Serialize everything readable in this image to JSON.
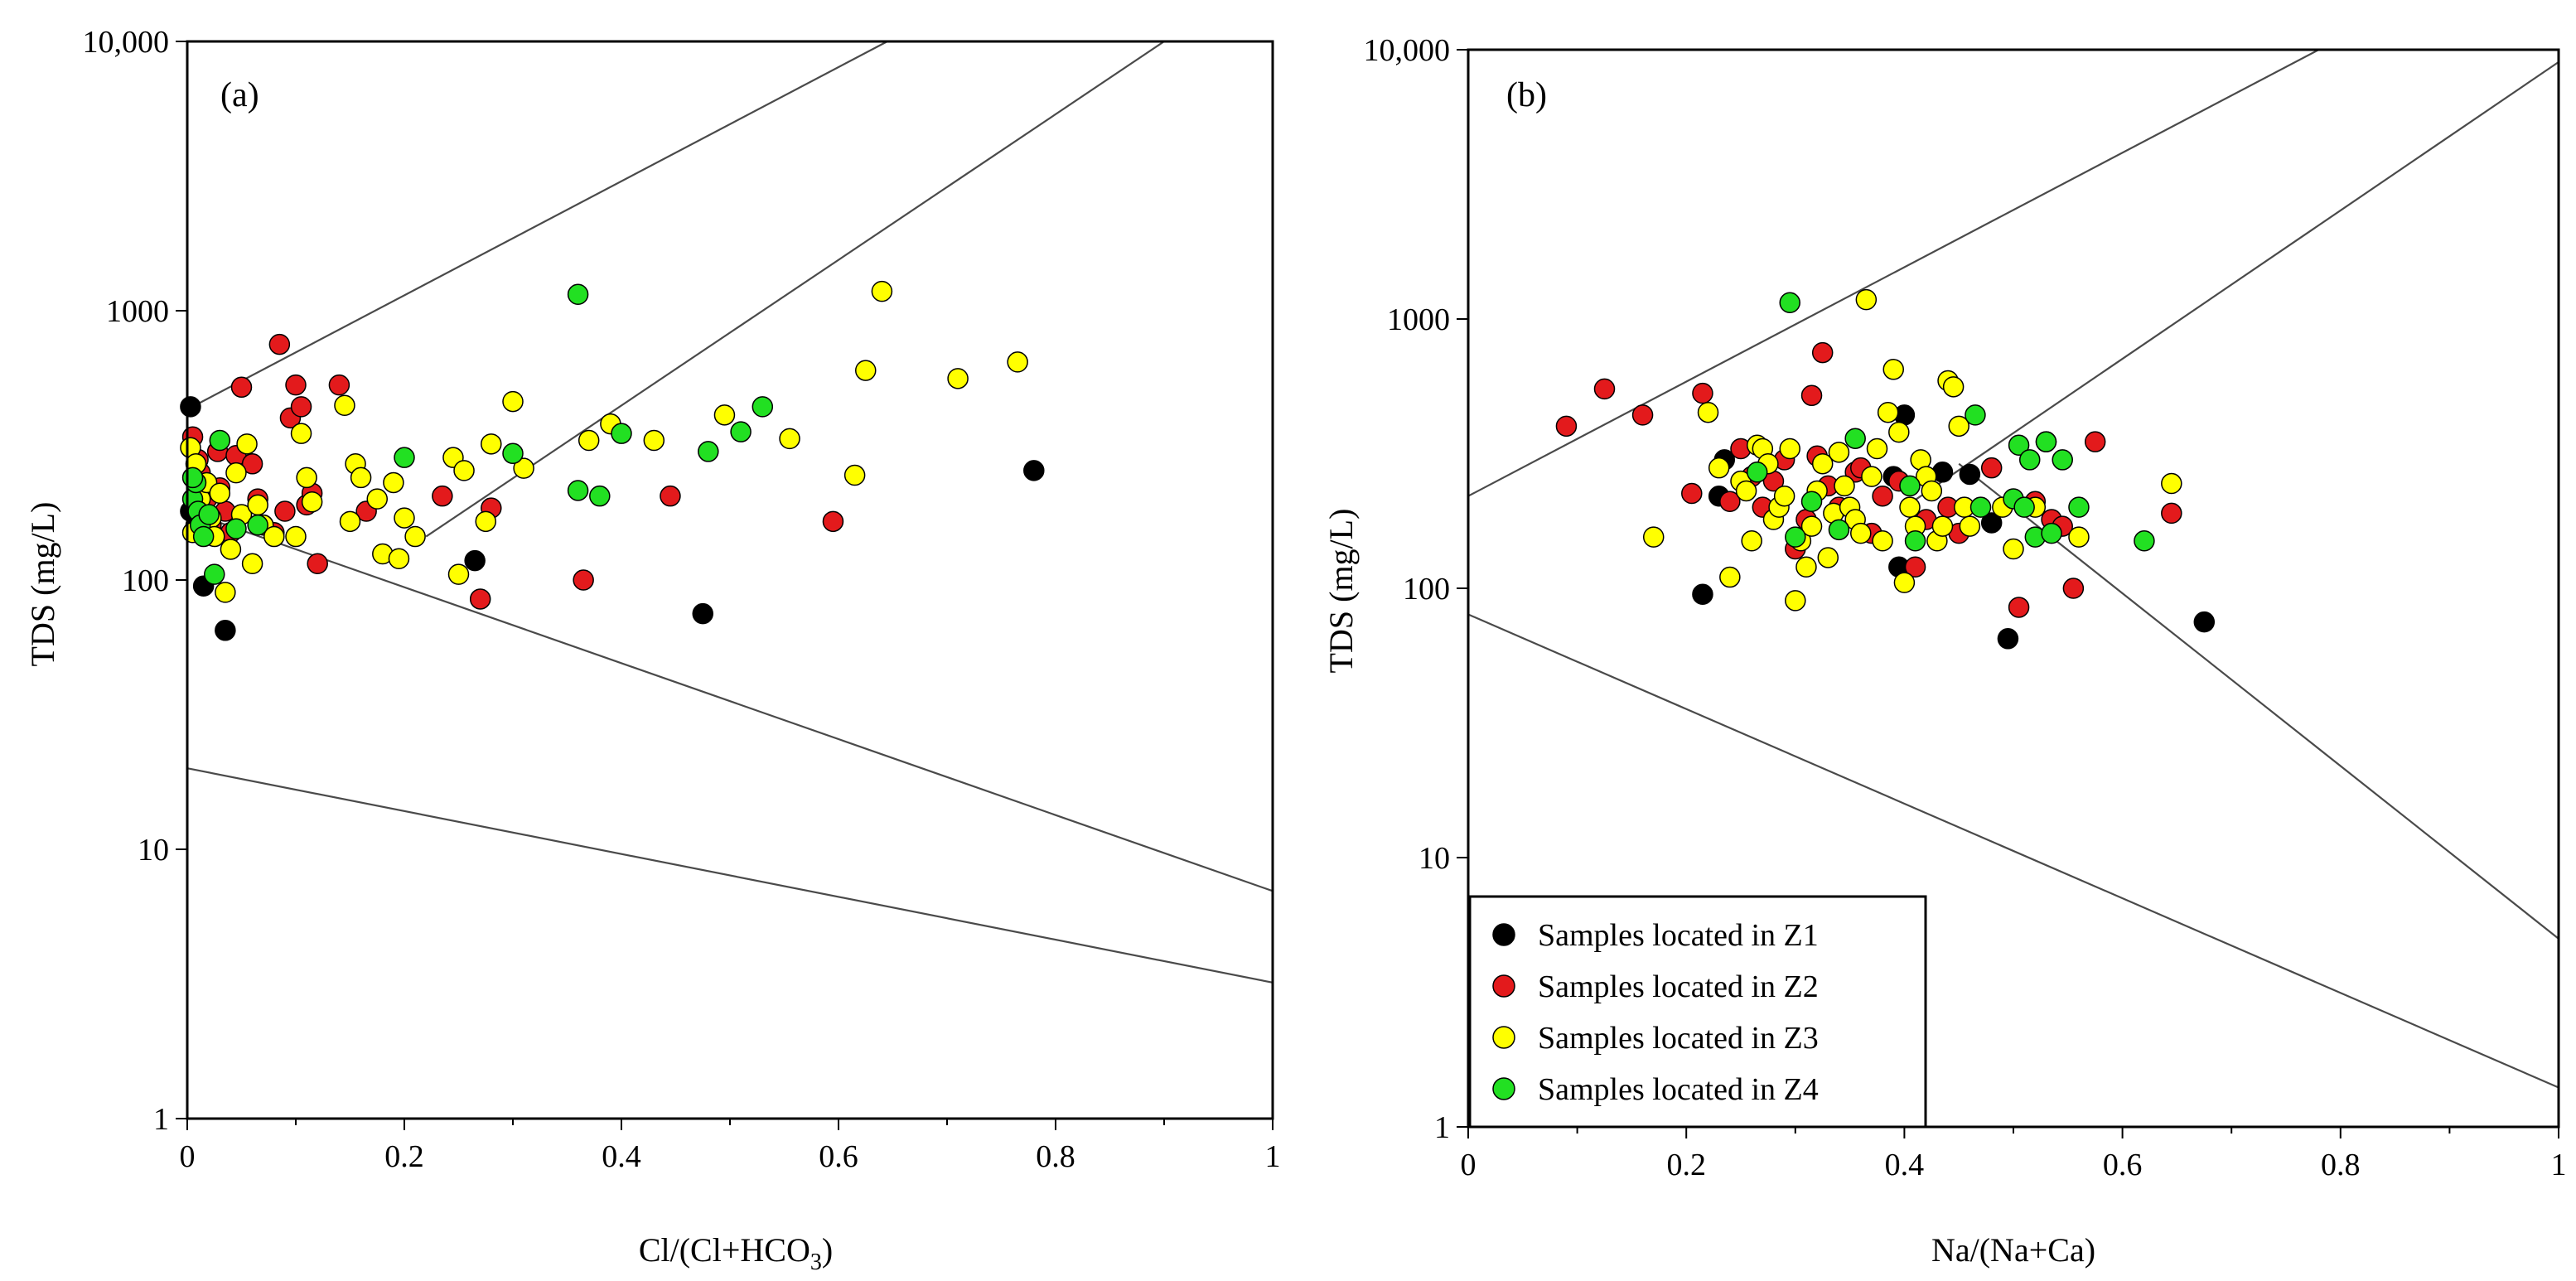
{
  "colors": {
    "Z1": "#000000",
    "Z2": "#e31a1c",
    "Z3": "#ffff00",
    "Z4": "#22e022"
  },
  "chart_data": [
    {
      "type": "scatter",
      "panel_label": "(a)",
      "title": "",
      "xlabel": "Cl/(Cl+HCO",
      "xlabel_sub": "3",
      "xlabel_end": ")",
      "ylabel": "TDS (mg/L)",
      "xlim": [
        0,
        1
      ],
      "ylim": [
        1,
        10000
      ],
      "yscale": "log",
      "x_ticks": [
        "0",
        "0.2",
        "0.4",
        "0.6",
        "0.8",
        "1"
      ],
      "y_ticks": [
        "1",
        "10",
        "100",
        "1000",
        "10,000"
      ],
      "boundary_lines": [
        {
          "x": [
            0,
            0.645
          ],
          "y": [
            430,
            10000
          ]
        },
        {
          "x": [
            0.22,
            0.9
          ],
          "y": [
            145,
            10000
          ]
        },
        {
          "x": [
            0,
            1
          ],
          "y": [
            180,
            7
          ]
        },
        {
          "x": [
            0,
            1
          ],
          "y": [
            20,
            3.2
          ]
        }
      ],
      "series": [
        {
          "name": "Samples located in Z1",
          "color_key": "Z1",
          "points": [
            [
              0.003,
              440
            ],
            [
              0.003,
              180
            ],
            [
              0.015,
              95
            ],
            [
              0.035,
              65
            ],
            [
              0.265,
              118
            ],
            [
              0.475,
              75
            ],
            [
              0.78,
              255
            ],
            [
              0.008,
              160
            ]
          ]
        },
        {
          "name": "Samples located in Z2",
          "color_key": "Z2",
          "points": [
            [
              0.005,
              340
            ],
            [
              0.01,
              280
            ],
            [
              0.012,
              250
            ],
            [
              0.018,
              200
            ],
            [
              0.022,
              160
            ],
            [
              0.028,
              300
            ],
            [
              0.03,
              220
            ],
            [
              0.035,
              180
            ],
            [
              0.04,
              150
            ],
            [
              0.045,
              290
            ],
            [
              0.05,
              520
            ],
            [
              0.06,
              270
            ],
            [
              0.065,
              200
            ],
            [
              0.07,
              160
            ],
            [
              0.08,
              150
            ],
            [
              0.085,
              750
            ],
            [
              0.09,
              180
            ],
            [
              0.095,
              400
            ],
            [
              0.1,
              530
            ],
            [
              0.105,
              440
            ],
            [
              0.11,
              190
            ],
            [
              0.115,
              210
            ],
            [
              0.12,
              115
            ],
            [
              0.14,
              530
            ],
            [
              0.165,
              180
            ],
            [
              0.235,
              205
            ],
            [
              0.27,
              85
            ],
            [
              0.28,
              185
            ],
            [
              0.365,
              100
            ],
            [
              0.445,
              205
            ],
            [
              0.595,
              165
            ]
          ]
        },
        {
          "name": "Samples located in Z3",
          "color_key": "Z3",
          "points": [
            [
              0.003,
              310
            ],
            [
              0.005,
              150
            ],
            [
              0.008,
              270
            ],
            [
              0.012,
              200
            ],
            [
              0.018,
              230
            ],
            [
              0.022,
              170
            ],
            [
              0.025,
              145
            ],
            [
              0.03,
              210
            ],
            [
              0.035,
              90
            ],
            [
              0.04,
              130
            ],
            [
              0.045,
              250
            ],
            [
              0.05,
              175
            ],
            [
              0.055,
              320
            ],
            [
              0.06,
              115
            ],
            [
              0.065,
              190
            ],
            [
              0.07,
              160
            ],
            [
              0.08,
              145
            ],
            [
              0.1,
              145
            ],
            [
              0.105,
              350
            ],
            [
              0.11,
              240
            ],
            [
              0.115,
              195
            ],
            [
              0.145,
              445
            ],
            [
              0.15,
              165
            ],
            [
              0.155,
              270
            ],
            [
              0.16,
              240
            ],
            [
              0.175,
              200
            ],
            [
              0.18,
              125
            ],
            [
              0.19,
              230
            ],
            [
              0.195,
              120
            ],
            [
              0.2,
              170
            ],
            [
              0.21,
              145
            ],
            [
              0.245,
              285
            ],
            [
              0.25,
              105
            ],
            [
              0.255,
              255
            ],
            [
              0.275,
              165
            ],
            [
              0.28,
              320
            ],
            [
              0.3,
              460
            ],
            [
              0.31,
              260
            ],
            [
              0.37,
              330
            ],
            [
              0.39,
              380
            ],
            [
              0.43,
              330
            ],
            [
              0.495,
              410
            ],
            [
              0.555,
              335
            ],
            [
              0.615,
              245
            ],
            [
              0.625,
              600
            ],
            [
              0.64,
              1180
            ],
            [
              0.71,
              560
            ],
            [
              0.765,
              645
            ]
          ]
        },
        {
          "name": "Samples located in Z4",
          "color_key": "Z4",
          "points": [
            [
              0.005,
              200
            ],
            [
              0.008,
              230
            ],
            [
              0.01,
              180
            ],
            [
              0.012,
              160
            ],
            [
              0.015,
              145
            ],
            [
              0.02,
              175
            ],
            [
              0.025,
              105
            ],
            [
              0.03,
              330
            ],
            [
              0.045,
              155
            ],
            [
              0.065,
              160
            ],
            [
              0.2,
              285
            ],
            [
              0.3,
              295
            ],
            [
              0.36,
              1150
            ],
            [
              0.36,
              215
            ],
            [
              0.38,
              205
            ],
            [
              0.4,
              350
            ],
            [
              0.48,
              300
            ],
            [
              0.51,
              355
            ],
            [
              0.53,
              440
            ],
            [
              0.005,
              240
            ]
          ]
        }
      ]
    },
    {
      "type": "scatter",
      "panel_label": "(b)",
      "title": "",
      "xlabel": "Na/(Na+Ca)",
      "ylabel": "TDS (mg/L)",
      "xlim": [
        0,
        1
      ],
      "ylim": [
        1,
        10000
      ],
      "yscale": "log",
      "x_ticks": [
        "0",
        "0.2",
        "0.4",
        "0.6",
        "0.8",
        "1"
      ],
      "y_ticks": [
        "1",
        "10",
        "100",
        "1000",
        "10,000"
      ],
      "boundary_lines": [
        {
          "x": [
            0,
            0.78
          ],
          "y": [
            220,
            10000
          ]
        },
        {
          "x": [
            0.4,
            1
          ],
          "y": [
            200,
            9000
          ]
        },
        {
          "x": [
            0.45,
            1
          ],
          "y": [
            290,
            5
          ]
        },
        {
          "x": [
            0,
            1
          ],
          "y": [
            80,
            1.4
          ]
        }
      ],
      "series": [
        {
          "name": "Samples located in Z1",
          "color_key": "Z1",
          "points": [
            [
              0.215,
              95
            ],
            [
              0.23,
              220
            ],
            [
              0.235,
              300
            ],
            [
              0.39,
              260
            ],
            [
              0.395,
              120
            ],
            [
              0.4,
              440
            ],
            [
              0.435,
              270
            ],
            [
              0.46,
              265
            ],
            [
              0.48,
              175
            ],
            [
              0.495,
              65
            ],
            [
              0.675,
              75
            ]
          ]
        },
        {
          "name": "Samples located in Z2",
          "color_key": "Z2",
          "points": [
            [
              0.09,
              400
            ],
            [
              0.125,
              550
            ],
            [
              0.16,
              440
            ],
            [
              0.205,
              225
            ],
            [
              0.215,
              530
            ],
            [
              0.24,
              210
            ],
            [
              0.25,
              330
            ],
            [
              0.26,
              260
            ],
            [
              0.27,
              200
            ],
            [
              0.28,
              250
            ],
            [
              0.29,
              300
            ],
            [
              0.3,
              140
            ],
            [
              0.31,
              180
            ],
            [
              0.315,
              520
            ],
            [
              0.32,
              310
            ],
            [
              0.325,
              750
            ],
            [
              0.33,
              240
            ],
            [
              0.34,
              200
            ],
            [
              0.355,
              270
            ],
            [
              0.36,
              280
            ],
            [
              0.37,
              160
            ],
            [
              0.38,
              220
            ],
            [
              0.395,
              250
            ],
            [
              0.41,
              120
            ],
            [
              0.42,
              180
            ],
            [
              0.44,
              200
            ],
            [
              0.45,
              160
            ],
            [
              0.48,
              280
            ],
            [
              0.505,
              85
            ],
            [
              0.52,
              210
            ],
            [
              0.53,
              350
            ],
            [
              0.535,
              180
            ],
            [
              0.545,
              170
            ],
            [
              0.555,
              100
            ],
            [
              0.575,
              350
            ],
            [
              0.645,
              190
            ]
          ]
        },
        {
          "name": "Samples located in Z3",
          "color_key": "Z3",
          "points": [
            [
              0.17,
              155
            ],
            [
              0.22,
              450
            ],
            [
              0.23,
              280
            ],
            [
              0.24,
              110
            ],
            [
              0.25,
              250
            ],
            [
              0.255,
              230
            ],
            [
              0.26,
              150
            ],
            [
              0.265,
              340
            ],
            [
              0.27,
              330
            ],
            [
              0.275,
              290
            ],
            [
              0.28,
              180
            ],
            [
              0.285,
              200
            ],
            [
              0.29,
              220
            ],
            [
              0.295,
              330
            ],
            [
              0.3,
              90
            ],
            [
              0.305,
              150
            ],
            [
              0.31,
              120
            ],
            [
              0.315,
              170
            ],
            [
              0.32,
              230
            ],
            [
              0.325,
              290
            ],
            [
              0.33,
              130
            ],
            [
              0.335,
              190
            ],
            [
              0.34,
              320
            ],
            [
              0.345,
              240
            ],
            [
              0.35,
              200
            ],
            [
              0.355,
              180
            ],
            [
              0.36,
              160
            ],
            [
              0.365,
              1180
            ],
            [
              0.37,
              260
            ],
            [
              0.375,
              330
            ],
            [
              0.38,
              150
            ],
            [
              0.385,
              450
            ],
            [
              0.39,
              650
            ],
            [
              0.395,
              380
            ],
            [
              0.4,
              105
            ],
            [
              0.405,
              200
            ],
            [
              0.41,
              170
            ],
            [
              0.415,
              300
            ],
            [
              0.42,
              260
            ],
            [
              0.425,
              230
            ],
            [
              0.43,
              150
            ],
            [
              0.435,
              170
            ],
            [
              0.44,
              590
            ],
            [
              0.445,
              560
            ],
            [
              0.45,
              400
            ],
            [
              0.455,
              200
            ],
            [
              0.46,
              170
            ],
            [
              0.49,
              200
            ],
            [
              0.5,
              140
            ],
            [
              0.52,
              200
            ],
            [
              0.56,
              155
            ],
            [
              0.645,
              245
            ]
          ]
        },
        {
          "name": "Samples located in Z4",
          "color_key": "Z4",
          "points": [
            [
              0.265,
              270
            ],
            [
              0.295,
              1150
            ],
            [
              0.3,
              155
            ],
            [
              0.315,
              210
            ],
            [
              0.34,
              165
            ],
            [
              0.355,
              360
            ],
            [
              0.405,
              240
            ],
            [
              0.41,
              150
            ],
            [
              0.465,
              440
            ],
            [
              0.47,
              200
            ],
            [
              0.5,
              215
            ],
            [
              0.505,
              340
            ],
            [
              0.51,
              200
            ],
            [
              0.515,
              300
            ],
            [
              0.52,
              155
            ],
            [
              0.53,
              350
            ],
            [
              0.535,
              160
            ],
            [
              0.545,
              300
            ],
            [
              0.56,
              200
            ],
            [
              0.62,
              150
            ]
          ]
        }
      ]
    }
  ],
  "legend": [
    {
      "label": "Samples located in Z1",
      "color_key": "Z1"
    },
    {
      "label": "Samples located in Z2",
      "color_key": "Z2"
    },
    {
      "label": "Samples located in Z3",
      "color_key": "Z3"
    },
    {
      "label": "Samples located in Z4",
      "color_key": "Z4"
    }
  ]
}
